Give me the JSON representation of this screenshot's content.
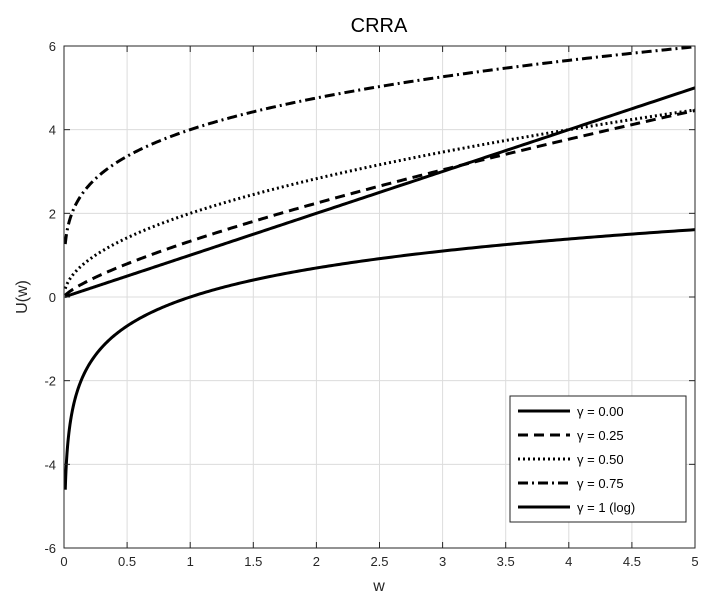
{
  "chart_data": {
    "type": "line",
    "title": "CRRA",
    "xlabel": "w",
    "ylabel": "U(w)",
    "xlim": [
      0,
      5
    ],
    "ylim": [
      -6,
      6
    ],
    "x_ticks": [
      0,
      0.5,
      1,
      1.5,
      2,
      2.5,
      3,
      3.5,
      4,
      4.5,
      5
    ],
    "x_tick_labels": [
      "0",
      "0.5",
      "1",
      "1.5",
      "2",
      "2.5",
      "3",
      "3.5",
      "4",
      "4.5",
      "5"
    ],
    "y_ticks": [
      -6,
      -4,
      -2,
      0,
      2,
      4,
      6
    ],
    "y_tick_labels": [
      "-6",
      "-4",
      "-2",
      "0",
      "2",
      "4",
      "6"
    ],
    "grid": true,
    "legend_position": "bottom-right",
    "x": [
      0.01,
      0.25,
      0.5,
      1,
      1.5,
      2,
      2.5,
      3,
      3.5,
      4,
      4.5,
      5
    ],
    "series": [
      {
        "name": "γ = 0.00",
        "style": "solid",
        "gamma": 0.0,
        "values": [
          0.01,
          0.25,
          0.5,
          1.0,
          1.5,
          2.0,
          2.5,
          3.0,
          3.5,
          4.0,
          4.5,
          5.0
        ]
      },
      {
        "name": "γ = 0.25",
        "style": "dashed",
        "gamma": 0.25,
        "values": [
          0.04,
          0.47,
          0.79,
          1.33,
          1.81,
          2.24,
          2.65,
          3.04,
          3.41,
          3.77,
          4.12,
          4.46
        ]
      },
      {
        "name": "γ = 0.50",
        "style": "dotted",
        "gamma": 0.5,
        "values": [
          0.2,
          1.0,
          1.41,
          2.0,
          2.45,
          2.83,
          3.16,
          3.46,
          3.74,
          4.0,
          4.24,
          4.47
        ]
      },
      {
        "name": "γ = 0.75",
        "style": "dashdot",
        "gamma": 0.75,
        "values": [
          1.26,
          2.83,
          3.36,
          4.0,
          4.43,
          4.76,
          5.03,
          5.26,
          5.47,
          5.66,
          5.83,
          5.98
        ]
      },
      {
        "name": "γ = 1 (log)",
        "style": "solid",
        "gamma": 1.0,
        "values": [
          -4.61,
          -1.39,
          -0.69,
          0.0,
          0.41,
          0.69,
          0.92,
          1.1,
          1.25,
          1.39,
          1.5,
          1.61
        ]
      }
    ],
    "colors": {
      "line": "#000000",
      "grid": "#dcdcdc",
      "axis": "#262626",
      "background": "#ffffff"
    }
  }
}
